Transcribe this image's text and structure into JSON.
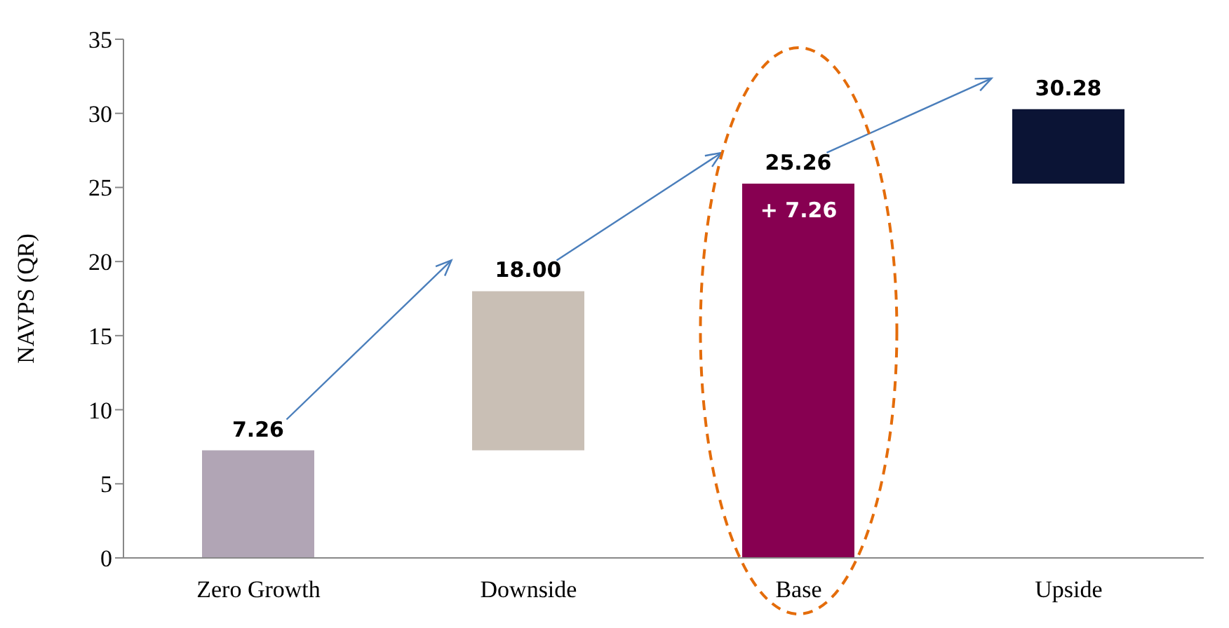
{
  "chart_data": {
    "type": "bar",
    "ylabel": "NAVPS (QR)",
    "categories": [
      "Zero Growth",
      "Downside",
      "Base",
      "Upside"
    ],
    "values": [
      7.26,
      10.74,
      25.26,
      5.02
    ],
    "base": [
      0,
      7.26,
      0,
      25.26
    ],
    "colors": [
      "#b1a5b5",
      "#c9bfb5",
      "#870051",
      "#0b1435"
    ],
    "value_labels": [
      "7.26",
      "18.00",
      "25.26",
      "30.28"
    ],
    "annotations": [
      "+ 7.26"
    ],
    "ylim": [
      0,
      35
    ],
    "yticks": [
      0,
      5,
      10,
      15,
      20,
      25,
      30,
      35
    ],
    "grid": false,
    "legend": false
  }
}
